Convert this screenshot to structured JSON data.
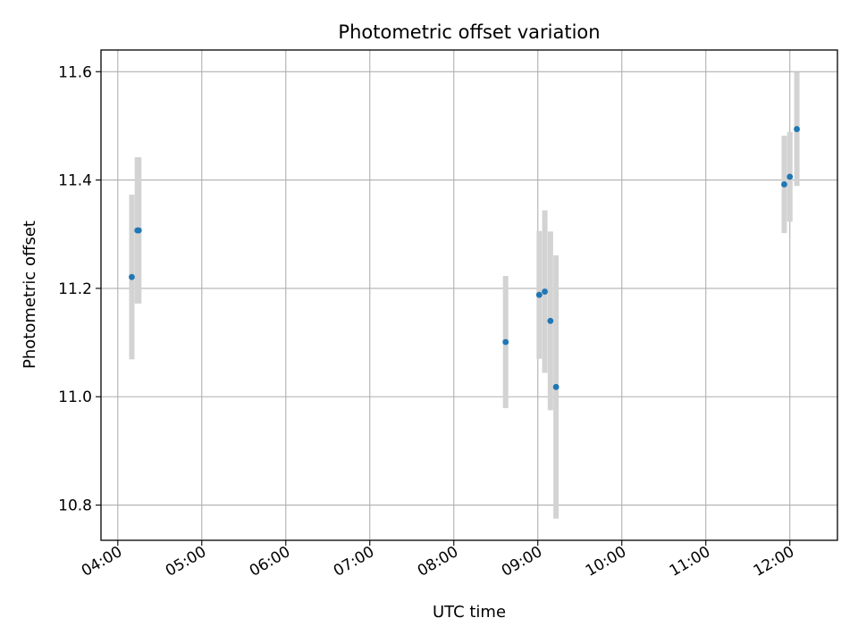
{
  "chart_data": {
    "type": "scatter",
    "title": "Photometric offset variation",
    "xlabel": "UTC time",
    "ylabel": "Photometric offset",
    "grid": true,
    "xlim": [
      "03:48",
      "12:34"
    ],
    "ylim": [
      10.735,
      11.64
    ],
    "xticks": [
      "04:00",
      "05:00",
      "06:00",
      "07:00",
      "08:00",
      "09:00",
      "10:00",
      "11:00",
      "12:00"
    ],
    "yticks": [
      "10.8",
      "11.0",
      "11.2",
      "11.4",
      "11.6"
    ],
    "colors": {
      "point": "#1f77b4",
      "errorbar": "#d3d3d3",
      "grid": "#b0b0b0"
    },
    "points": [
      {
        "x": "04:10",
        "y": 11.221,
        "yerr": 0.152
      },
      {
        "x": "04:14",
        "y": 11.307,
        "yerr": 0.135
      },
      {
        "x": "04:15",
        "y": 11.307,
        "yerr": 0.135
      },
      {
        "x": "08:37",
        "y": 11.101,
        "yerr": 0.122
      },
      {
        "x": "09:01",
        "y": 11.188,
        "yerr": 0.118
      },
      {
        "x": "09:05",
        "y": 11.194,
        "yerr": 0.15
      },
      {
        "x": "09:09",
        "y": 11.14,
        "yerr": 0.165
      },
      {
        "x": "09:13",
        "y": 11.018,
        "yerr": 0.243
      },
      {
        "x": "11:56",
        "y": 11.392,
        "yerr": 0.09
      },
      {
        "x": "12:00",
        "y": 11.406,
        "yerr": 0.083
      },
      {
        "x": "12:05",
        "y": 11.494,
        "yerr": 0.105
      }
    ]
  }
}
